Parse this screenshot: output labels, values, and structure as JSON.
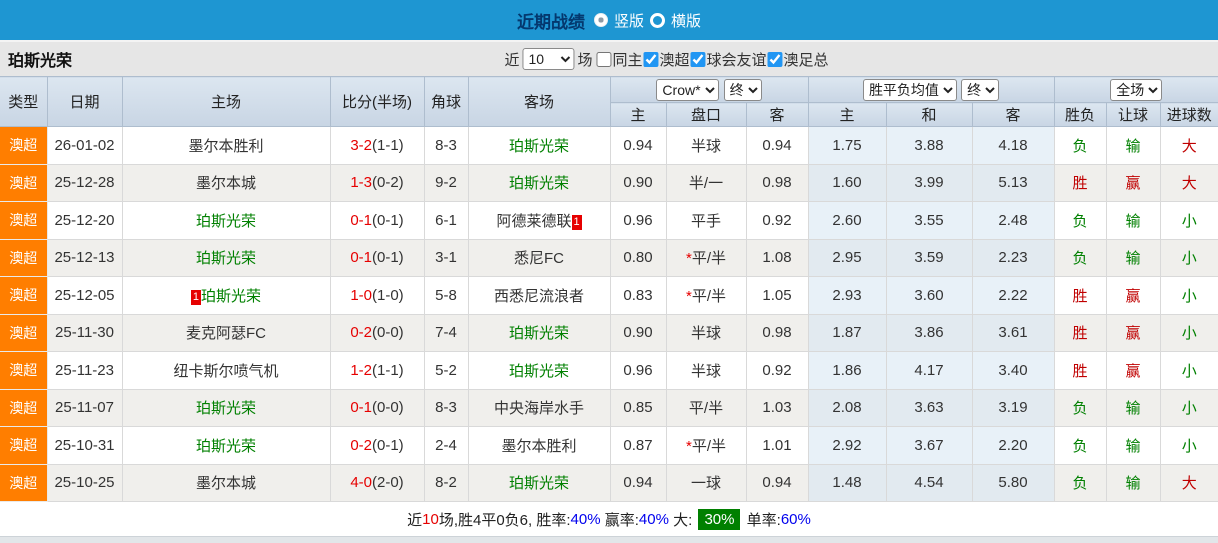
{
  "topbar": {
    "title": "近期战绩",
    "radio_vertical_label": "竖版",
    "radio_horizontal_label": "横版"
  },
  "filterbar": {
    "team_title": "珀斯光荣",
    "near_label": "近",
    "count_value": "10",
    "matches_label": "场",
    "same_home_label": "同主",
    "league_label": "澳超",
    "friendly_label": "球会友谊",
    "cup_label": "澳足总"
  },
  "table": {
    "headers": {
      "type": "类型",
      "date": "日期",
      "home": "主场",
      "score": "比分(半场)",
      "corner": "角球",
      "away": "客场"
    },
    "selects": {
      "odds_company": "Crow*",
      "odds_state": "终",
      "avg_type": "胜平负均值",
      "avg_state": "终",
      "scope": "全场"
    },
    "sub_headers": [
      "主",
      "盘口",
      "客",
      "主",
      "和",
      "客",
      "胜负",
      "让球",
      "进球数"
    ],
    "rows": [
      {
        "league": "澳超",
        "date": "26-01-02",
        "home": "墨尔本胜利",
        "home_green": false,
        "home_card": false,
        "score": "3-2",
        "half": "(1-1)",
        "corner": "8-3",
        "away": "珀斯光荣",
        "away_green": true,
        "away_card": false,
        "odds_home": "0.94",
        "handicap": "半球",
        "handicap_star": false,
        "odds_away": "0.94",
        "avg_win": "1.75",
        "avg_draw": "3.88",
        "avg_lose": "4.18",
        "result": "负",
        "handicap_result": "输",
        "goals": "大"
      },
      {
        "league": "澳超",
        "date": "25-12-28",
        "home": "墨尔本城",
        "home_green": false,
        "home_card": false,
        "score": "1-3",
        "half": "(0-2)",
        "corner": "9-2",
        "away": "珀斯光荣",
        "away_green": true,
        "away_card": false,
        "odds_home": "0.90",
        "handicap": "半/一",
        "handicap_star": false,
        "odds_away": "0.98",
        "avg_win": "1.60",
        "avg_draw": "3.99",
        "avg_lose": "5.13",
        "result": "胜",
        "handicap_result": "赢",
        "goals": "大"
      },
      {
        "league": "澳超",
        "date": "25-12-20",
        "home": "珀斯光荣",
        "home_green": true,
        "home_card": false,
        "score": "0-1",
        "half": "(0-1)",
        "corner": "6-1",
        "away": "阿德莱德联",
        "away_green": false,
        "away_card": true,
        "odds_home": "0.96",
        "handicap": "平手",
        "handicap_star": false,
        "odds_away": "0.92",
        "avg_win": "2.60",
        "avg_draw": "3.55",
        "avg_lose": "2.48",
        "result": "负",
        "handicap_result": "输",
        "goals": "小"
      },
      {
        "league": "澳超",
        "date": "25-12-13",
        "home": "珀斯光荣",
        "home_green": true,
        "home_card": false,
        "score": "0-1",
        "half": "(0-1)",
        "corner": "3-1",
        "away": "悉尼FC",
        "away_green": false,
        "away_card": false,
        "odds_home": "0.80",
        "handicap": "平/半",
        "handicap_star": true,
        "odds_away": "1.08",
        "avg_win": "2.95",
        "avg_draw": "3.59",
        "avg_lose": "2.23",
        "result": "负",
        "handicap_result": "输",
        "goals": "小"
      },
      {
        "league": "澳超",
        "date": "25-12-05",
        "home": "珀斯光荣",
        "home_green": true,
        "home_card": true,
        "score": "1-0",
        "half": "(1-0)",
        "corner": "5-8",
        "away": "西悉尼流浪者",
        "away_green": false,
        "away_card": false,
        "odds_home": "0.83",
        "handicap": "平/半",
        "handicap_star": true,
        "odds_away": "1.05",
        "avg_win": "2.93",
        "avg_draw": "3.60",
        "avg_lose": "2.22",
        "result": "胜",
        "handicap_result": "赢",
        "goals": "小"
      },
      {
        "league": "澳超",
        "date": "25-11-30",
        "home": "麦克阿瑟FC",
        "home_green": false,
        "home_card": false,
        "score": "0-2",
        "half": "(0-0)",
        "corner": "7-4",
        "away": "珀斯光荣",
        "away_green": true,
        "away_card": false,
        "odds_home": "0.90",
        "handicap": "半球",
        "handicap_star": false,
        "odds_away": "0.98",
        "avg_win": "1.87",
        "avg_draw": "3.86",
        "avg_lose": "3.61",
        "result": "胜",
        "handicap_result": "赢",
        "goals": "小"
      },
      {
        "league": "澳超",
        "date": "25-11-23",
        "home": "纽卡斯尔喷气机",
        "home_green": false,
        "home_card": false,
        "score": "1-2",
        "half": "(1-1)",
        "corner": "5-2",
        "away": "珀斯光荣",
        "away_green": true,
        "away_card": false,
        "odds_home": "0.96",
        "handicap": "半球",
        "handicap_star": false,
        "odds_away": "0.92",
        "avg_win": "1.86",
        "avg_draw": "4.17",
        "avg_lose": "3.40",
        "result": "胜",
        "handicap_result": "赢",
        "goals": "小"
      },
      {
        "league": "澳超",
        "date": "25-11-07",
        "home": "珀斯光荣",
        "home_green": true,
        "home_card": false,
        "score": "0-1",
        "half": "(0-0)",
        "corner": "8-3",
        "away": "中央海岸水手",
        "away_green": false,
        "away_card": false,
        "odds_home": "0.85",
        "handicap": "平/半",
        "handicap_star": false,
        "odds_away": "1.03",
        "avg_win": "2.08",
        "avg_draw": "3.63",
        "avg_lose": "3.19",
        "result": "负",
        "handicap_result": "输",
        "goals": "小"
      },
      {
        "league": "澳超",
        "date": "25-10-31",
        "home": "珀斯光荣",
        "home_green": true,
        "home_card": false,
        "score": "0-2",
        "half": "(0-1)",
        "corner": "2-4",
        "away": "墨尔本胜利",
        "away_green": false,
        "away_card": false,
        "odds_home": "0.87",
        "handicap": "平/半",
        "handicap_star": true,
        "odds_away": "1.01",
        "avg_win": "2.92",
        "avg_draw": "3.67",
        "avg_lose": "2.20",
        "result": "负",
        "handicap_result": "输",
        "goals": "小"
      },
      {
        "league": "澳超",
        "date": "25-10-25",
        "home": "墨尔本城",
        "home_green": false,
        "home_card": false,
        "score": "4-0",
        "half": "(2-0)",
        "corner": "8-2",
        "away": "珀斯光荣",
        "away_green": true,
        "away_card": false,
        "odds_home": "0.94",
        "handicap": "一球",
        "handicap_star": false,
        "odds_away": "0.94",
        "avg_win": "1.48",
        "avg_draw": "4.54",
        "avg_lose": "5.80",
        "result": "负",
        "handicap_result": "输",
        "goals": "大"
      }
    ]
  },
  "summary": {
    "parts": [
      {
        "text": "近",
        "style": "plain"
      },
      {
        "text": "10",
        "style": "red"
      },
      {
        "text": "场,胜4平0负6, ",
        "style": "plain"
      },
      {
        "text": "胜率:",
        "style": "plain"
      },
      {
        "text": "40%",
        "style": "blue"
      },
      {
        "text": " 赢率:",
        "style": "plain"
      },
      {
        "text": "40%",
        "style": "blue"
      },
      {
        "text": " 大: ",
        "style": "plain"
      },
      {
        "text": "30%",
        "style": "badge"
      },
      {
        "text": " 单率:",
        "style": "plain"
      },
      {
        "text": "60%",
        "style": "blue"
      }
    ]
  },
  "colors": {
    "topbar_bg": "#1e96d2",
    "title_text": "#04386e",
    "league_badge": "#ff7e00",
    "team_green": "#008000",
    "score_red": "#e60000",
    "win_red": "#c00000",
    "lose_green": "#008000",
    "pct_blue": "#0000ee",
    "badge_green_bg": "#008000"
  }
}
